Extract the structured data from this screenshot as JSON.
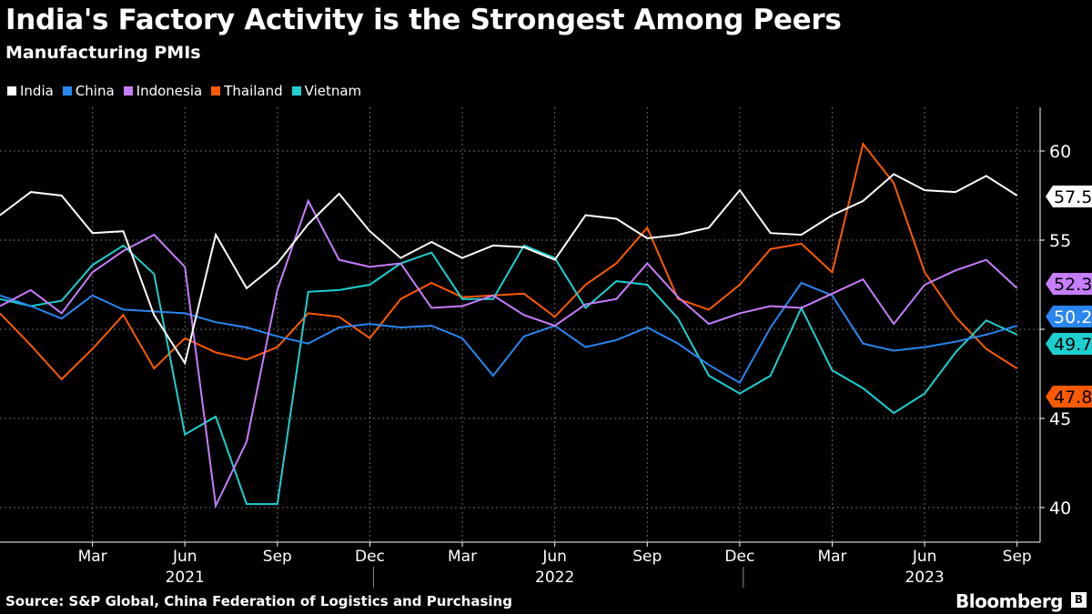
{
  "title": "India's Factory Activity is the Strongest Among Peers",
  "subtitle": "Manufacturing PMIs",
  "source": "Source: S&P Global, China Federation of Logistics and Purchasing",
  "brand": "Bloomberg",
  "chart_data": {
    "type": "line",
    "title": "India's Factory Activity is the Strongest Among Peers",
    "subtitle": "Manufacturing PMIs",
    "x": [
      "Dec 2020",
      "Jan 2021",
      "Feb 2021",
      "Mar 2021",
      "Apr 2021",
      "May 2021",
      "Jun 2021",
      "Jul 2021",
      "Aug 2021",
      "Sep 2021",
      "Oct 2021",
      "Nov 2021",
      "Dec 2021",
      "Jan 2022",
      "Feb 2022",
      "Mar 2022",
      "Apr 2022",
      "May 2022",
      "Jun 2022",
      "Jul 2022",
      "Aug 2022",
      "Sep 2022",
      "Oct 2022",
      "Nov 2022",
      "Dec 2022",
      "Jan 2023",
      "Feb 2023",
      "Mar 2023",
      "Apr 2023",
      "May 2023",
      "Jun 2023",
      "Jul 2023",
      "Aug 2023",
      "Sep 2023"
    ],
    "xticks": [
      {
        "index": 3,
        "label": "Mar"
      },
      {
        "index": 6,
        "label": "Jun"
      },
      {
        "index": 9,
        "label": "Sep"
      },
      {
        "index": 12,
        "label": "Dec"
      },
      {
        "index": 15,
        "label": "Mar"
      },
      {
        "index": 18,
        "label": "Jun"
      },
      {
        "index": 21,
        "label": "Sep"
      },
      {
        "index": 24,
        "label": "Dec"
      },
      {
        "index": 27,
        "label": "Mar"
      },
      {
        "index": 30,
        "label": "Jun"
      },
      {
        "index": 33,
        "label": "Sep"
      }
    ],
    "years": [
      {
        "index": 6,
        "label": "2021"
      },
      {
        "index": 18,
        "label": "2022"
      },
      {
        "index": 30,
        "label": "2023"
      }
    ],
    "year_separators": [
      12,
      24
    ],
    "yticks": [
      40,
      45,
      50,
      55,
      60
    ],
    "ytick_labels": [
      "40",
      "45",
      "",
      "55",
      "60"
    ],
    "ylim": [
      38,
      62.5
    ],
    "grid": true,
    "legend": "top-left",
    "series": [
      {
        "name": "Thailand",
        "color": "#ff5a00",
        "last_label": "47.8",
        "values": [
          50.9,
          49.1,
          47.2,
          48.9,
          50.8,
          47.8,
          49.5,
          48.7,
          48.3,
          49.0,
          50.9,
          50.7,
          49.5,
          51.7,
          52.6,
          51.8,
          51.9,
          52.0,
          50.7,
          52.5,
          53.7,
          55.7,
          51.7,
          51.1,
          52.5,
          54.5,
          54.8,
          53.2,
          60.4,
          58.2,
          53.2,
          50.7,
          48.9,
          47.8
        ]
      },
      {
        "name": "Vietnam",
        "color": "#1ecfcf",
        "last_label": "49.7",
        "values": [
          51.7,
          51.3,
          51.6,
          53.6,
          54.7,
          53.1,
          44.1,
          45.1,
          40.2,
          40.2,
          52.1,
          52.2,
          52.5,
          53.7,
          54.3,
          51.7,
          51.7,
          54.7,
          54.0,
          51.2,
          52.7,
          52.5,
          50.6,
          47.4,
          46.4,
          47.4,
          51.2,
          47.7,
          46.7,
          45.3,
          46.4,
          48.7,
          50.5,
          49.7
        ]
      },
      {
        "name": "China",
        "color": "#2a86f0",
        "last_label": "50.2",
        "values": [
          51.9,
          51.3,
          50.6,
          51.9,
          51.1,
          51.0,
          50.9,
          50.4,
          50.1,
          49.6,
          49.2,
          50.1,
          50.3,
          50.1,
          50.2,
          49.5,
          47.4,
          49.6,
          50.2,
          49.0,
          49.4,
          50.1,
          49.2,
          48.0,
          47.0,
          50.1,
          52.6,
          51.9,
          49.2,
          48.8,
          49.0,
          49.3,
          49.7,
          50.2
        ]
      },
      {
        "name": "Indonesia",
        "color": "#c77dff",
        "last_label": "52.3",
        "values": [
          51.3,
          52.2,
          50.9,
          53.2,
          54.4,
          55.3,
          53.5,
          40.1,
          43.7,
          52.2,
          57.2,
          53.9,
          53.5,
          53.7,
          51.2,
          51.3,
          51.9,
          50.8,
          50.2,
          51.4,
          51.7,
          53.7,
          51.8,
          50.3,
          50.9,
          51.3,
          51.2,
          52.0,
          52.8,
          50.3,
          52.5,
          53.3,
          53.9,
          52.3
        ]
      },
      {
        "name": "India",
        "color": "#ffffff",
        "last_label": "57.5",
        "values": [
          56.4,
          57.7,
          57.5,
          55.4,
          55.5,
          50.8,
          48.1,
          55.3,
          52.3,
          53.7,
          55.9,
          57.6,
          55.5,
          54.0,
          54.9,
          54.0,
          54.7,
          54.6,
          53.9,
          56.4,
          56.2,
          55.1,
          55.3,
          55.7,
          57.8,
          55.4,
          55.3,
          56.4,
          57.2,
          58.7,
          57.8,
          57.7,
          58.6,
          57.5
        ]
      }
    ],
    "legend_order": [
      "India",
      "China",
      "Indonesia",
      "Thailand",
      "Vietnam"
    ]
  }
}
